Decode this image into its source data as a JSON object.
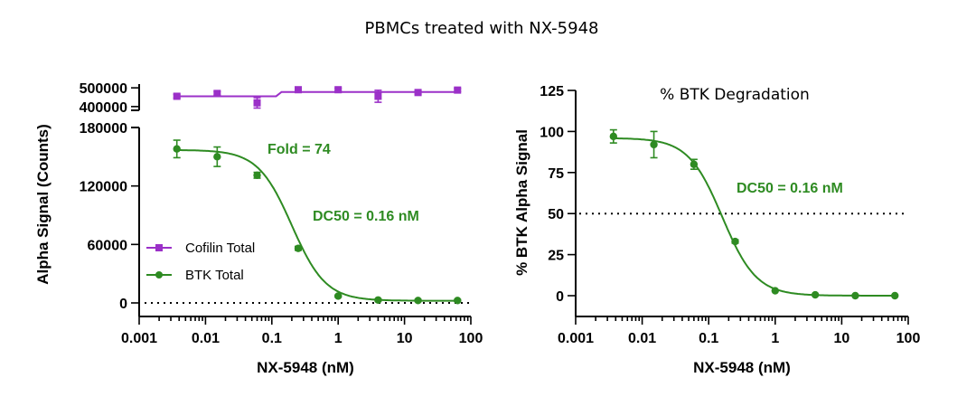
{
  "title": "PBMCs treated with NX-5948",
  "colors": {
    "btk": "#2e8b22",
    "cofilin": "#9b30c8",
    "axis": "#000000"
  },
  "chart_data": [
    {
      "type": "scatter",
      "name": "left-panel",
      "xscale": "log",
      "xlim": [
        0.001,
        100
      ],
      "xticks": [
        0.001,
        0.01,
        0.1,
        1,
        10,
        100
      ],
      "xtick_labels": [
        "0.001",
        "0.01",
        "0.1",
        "1",
        "10",
        "100"
      ],
      "xlabel": "NX-5948 (nM)",
      "ylabel": "Alpha Signal (Counts)",
      "ylim": [
        0,
        180000
      ],
      "yticks": [
        0,
        60000,
        120000,
        180000
      ],
      "ytick_labels": [
        "0",
        "60000",
        "120000",
        "180000"
      ],
      "top_ylim": [
        380000,
        520000
      ],
      "top_yticks": [
        400000,
        500000
      ],
      "top_ytick_labels": [
        "400000",
        "500000"
      ],
      "baseline": 0,
      "series": [
        {
          "name": "Cofilin Total",
          "marker": "square",
          "x": [
            0.0037,
            0.015,
            0.06,
            0.25,
            1,
            4,
            16,
            63
          ],
          "y": [
            455000,
            470000,
            420000,
            490000,
            490000,
            455000,
            475000,
            488000
          ],
          "err": [
            10000,
            10000,
            28000,
            8000,
            8000,
            32000,
            8000,
            8000
          ],
          "fit": {
            "kind": "step",
            "low": 455000,
            "high": 478000,
            "x_step": 0.14
          }
        },
        {
          "name": "BTK Total",
          "marker": "circle",
          "x": [
            0.0037,
            0.015,
            0.06,
            0.25,
            1,
            4,
            16,
            63
          ],
          "y": [
            158000,
            150000,
            131000,
            56000,
            7000,
            3000,
            2500,
            2500
          ],
          "err": [
            9000,
            10000,
            3000,
            2000,
            1000,
            1000,
            1000,
            1000
          ],
          "fit": {
            "kind": "4pl",
            "top": 157000,
            "bottom": 2200,
            "ec50": 0.2,
            "hill": 1.7
          }
        }
      ],
      "annotations": [
        {
          "text": "Fold = 74"
        },
        {
          "text": "DC50 = 0.16 nM"
        }
      ],
      "legend": {
        "position": "bottom-left",
        "entries": [
          "Cofilin Total",
          "BTK Total"
        ]
      }
    },
    {
      "type": "scatter",
      "name": "right-panel",
      "title": "% BTK Degradation",
      "xscale": "log",
      "xlim": [
        0.001,
        100
      ],
      "xticks": [
        0.001,
        0.01,
        0.1,
        1,
        10,
        100
      ],
      "xtick_labels": [
        "0.001",
        "0.01",
        "0.1",
        "1",
        "10",
        "100"
      ],
      "xlabel": "NX-5948 (nM)",
      "ylabel": "% BTK Alpha Signal",
      "ylim": [
        0,
        125
      ],
      "yticks": [
        0,
        25,
        50,
        75,
        100,
        125
      ],
      "ytick_labels": [
        "0",
        "25",
        "50",
        "75",
        "100",
        "125"
      ],
      "reference_line": 50,
      "series": [
        {
          "name": "% BTK Alpha Signal",
          "marker": "circle",
          "x": [
            0.0037,
            0.015,
            0.06,
            0.25,
            1,
            4,
            16,
            63
          ],
          "y": [
            97,
            92,
            80,
            33,
            3,
            0.5,
            0,
            0
          ],
          "err": [
            4,
            8,
            3,
            1,
            0.5,
            0.3,
            0.3,
            0.3
          ],
          "fit": {
            "kind": "4pl",
            "top": 96,
            "bottom": 0,
            "ec50": 0.16,
            "hill": 1.7
          }
        }
      ],
      "annotations": [
        {
          "text": "DC50 = 0.16 nM"
        }
      ]
    }
  ]
}
